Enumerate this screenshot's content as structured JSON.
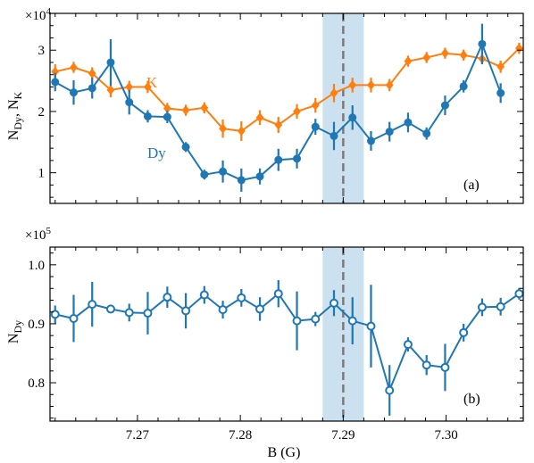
{
  "colors": {
    "dy": "#1f77b4",
    "k": "#ff7f0e",
    "band": "#b7d4ea",
    "marker_line": "#7a7a7a"
  },
  "chart_data": [
    {
      "type": "line",
      "panel_label": "(a)",
      "ylabel_main": "N",
      "ylabel_sub1": "Dy",
      "ylabel_sep": ", N",
      "ylabel_sub2": "K",
      "multiplier_base": "×10",
      "multiplier_exp": "4",
      "xlim": [
        7.2615,
        7.3075
      ],
      "ylim": [
        5000,
        36000
      ],
      "yticks": [
        10000,
        20000,
        30000
      ],
      "ytick_labels": [
        "1",
        "2",
        "3"
      ],
      "highlight_band": [
        7.288,
        7.292
      ],
      "vline": 7.29,
      "series": [
        {
          "name": "K",
          "marker": "diamond",
          "x": [
            7.262,
            7.2638,
            7.2656,
            7.2674,
            7.2692,
            7.271,
            7.2729,
            7.2747,
            7.2765,
            7.2783,
            7.2801,
            7.2819,
            7.2837,
            7.2855,
            7.2873,
            7.2891,
            7.2909,
            7.2927,
            7.2945,
            7.2963,
            7.2981,
            7.2999,
            7.3017,
            7.3035,
            7.3053,
            7.3071
          ],
          "y": [
            26500,
            27200,
            26200,
            23500,
            24000,
            24000,
            20500,
            20200,
            20600,
            17200,
            16800,
            19000,
            17800,
            20000,
            21000,
            23000,
            24300,
            24300,
            24300,
            28200,
            28800,
            29500,
            29200,
            28600,
            27300,
            30300
          ],
          "err": [
            1200,
            900,
            1000,
            1200,
            1000,
            1000,
            900,
            900,
            900,
            1500,
            1600,
            1200,
            1300,
            1200,
            1200,
            1500,
            1200,
            1200,
            1000,
            900,
            900,
            900,
            900,
            900,
            1000,
            900
          ]
        },
        {
          "name": "Dy",
          "marker": "circle",
          "x": [
            7.262,
            7.2638,
            7.2656,
            7.2674,
            7.2692,
            7.271,
            7.2729,
            7.2747,
            7.2765,
            7.2783,
            7.2801,
            7.2819,
            7.2837,
            7.2855,
            7.2873,
            7.2891,
            7.2909,
            7.2927,
            7.2945,
            7.2963,
            7.2981,
            7.2999,
            7.3017,
            7.3035,
            7.3053,
            7.3071
          ],
          "y": [
            24800,
            23100,
            23800,
            28000,
            21500,
            19200,
            19100,
            14200,
            9700,
            10200,
            8800,
            9400,
            12100,
            12300,
            17500,
            16000,
            19000,
            15200,
            16700,
            18200,
            16400,
            21000,
            24100,
            31000,
            23000,
            null
          ],
          "err": [
            1500,
            2000,
            1700,
            3800,
            2000,
            1000,
            1000,
            800,
            800,
            1800,
            1900,
            1300,
            1800,
            1600,
            1300,
            2300,
            2000,
            1600,
            1600,
            1600,
            1000,
            1600,
            1000,
            3300,
            1600,
            0
          ]
        }
      ]
    },
    {
      "type": "line",
      "panel_label": "(b)",
      "xlabel": "B (G)",
      "ylabel_main": "N",
      "ylabel_sub1": "Dy",
      "multiplier_base": "×10",
      "multiplier_exp": "5",
      "xlim": [
        7.2615,
        7.3075
      ],
      "ylim": [
        73500,
        103000
      ],
      "yticks": [
        80000,
        90000,
        100000
      ],
      "ytick_labels": [
        "0.8",
        "0.9",
        "1.0"
      ],
      "xticks": [
        7.27,
        7.28,
        7.29,
        7.3
      ],
      "xtick_labels": [
        "7.27",
        "7.28",
        "7.29",
        "7.30"
      ],
      "highlight_band": [
        7.288,
        7.292
      ],
      "vline": 7.29,
      "series": [
        {
          "name": "Dy",
          "marker": "open-circle",
          "x": [
            7.262,
            7.2638,
            7.2656,
            7.2674,
            7.2692,
            7.271,
            7.2729,
            7.2747,
            7.2765,
            7.2783,
            7.2801,
            7.2819,
            7.2837,
            7.2855,
            7.2873,
            7.2891,
            7.2909,
            7.2927,
            7.2945,
            7.2963,
            7.2981,
            7.2999,
            7.3017,
            7.3035,
            7.3053,
            7.3071
          ],
          "y": [
            91600,
            90900,
            93300,
            92500,
            91900,
            91800,
            94500,
            92200,
            94900,
            92400,
            94400,
            92500,
            95100,
            90500,
            90800,
            93500,
            90500,
            89600,
            78700,
            86500,
            83000,
            82600,
            88500,
            92800,
            92900,
            95100
          ],
          "err": [
            1500,
            4000,
            3800,
            700,
            1500,
            3600,
            1800,
            3000,
            1500,
            1500,
            1500,
            2000,
            2300,
            5000,
            1200,
            2200,
            4000,
            7000,
            4300,
            1200,
            1700,
            4000,
            1500,
            1500,
            1500,
            1000
          ]
        }
      ]
    }
  ]
}
